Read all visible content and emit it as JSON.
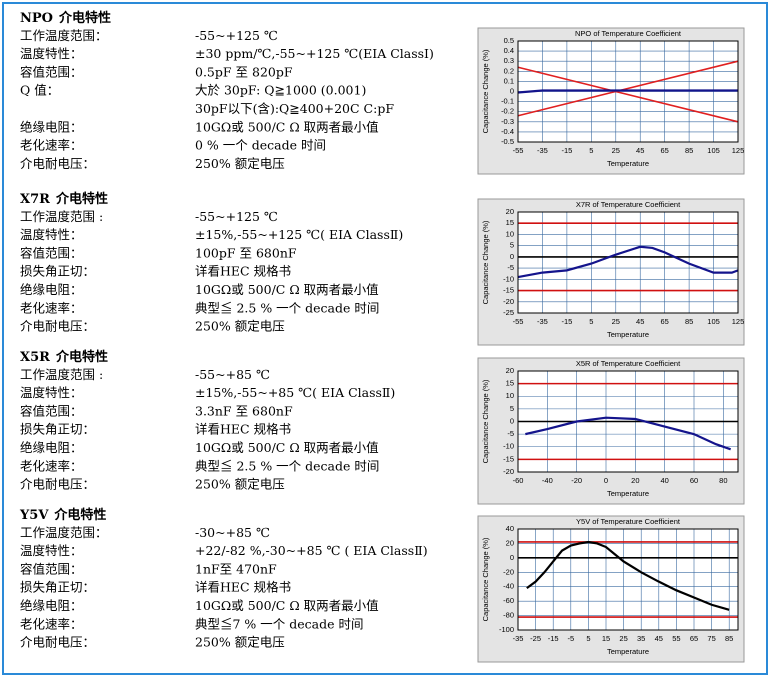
{
  "sections": [
    {
      "heading": {
        "code": "NPO",
        "text": "介电特性"
      },
      "items": [
        {
          "label": "工作温度范围：",
          "values": [
            "-55~+125 ℃"
          ]
        },
        {
          "label": "温度特性：",
          "values": [
            "±30 ppm/℃,-55~+125 ℃(EIA ClassⅠ)"
          ]
        },
        {
          "label": "容值范围：",
          "values": [
            "0.5pF 至 820pF"
          ]
        },
        {
          "label": "Q 值：",
          "values": [
            "大於 30pF: Q≧1000  (0.001)",
            "30pF以下(含):Q≧400+20C C:pF"
          ]
        },
        {
          "label": "绝缘电阻：",
          "values": [
            "10GΩ或 500/C Ω 取两者最小值"
          ]
        },
        {
          "label": "老化速率：",
          "values": [
            "0 % 一个 decade 时间"
          ]
        },
        {
          "label": "介电耐电压：",
          "values": [
            "250% 额定电压"
          ]
        }
      ]
    },
    {
      "heading": {
        "code": "X7R",
        "text": "介电特性"
      },
      "items": [
        {
          "label": "工作温度范围 :",
          "values": [
            "-55~+125 ℃"
          ]
        },
        {
          "label": "温度特性：",
          "values": [
            "±15%,-55~+125 ℃( EIA ClassⅡ)"
          ]
        },
        {
          "label": "容值范围：",
          "values": [
            "100pF 至 680nF"
          ]
        },
        {
          "label": "损失角正切：",
          "values": [
            "详看HEC 规格书"
          ]
        },
        {
          "label": "绝缘电阻：",
          "values": [
            "10GΩ或 500/C Ω 取两者最小值"
          ]
        },
        {
          "label": "老化速率：",
          "values": [
            "典型≦ 2.5 % 一个 decade 时间"
          ]
        },
        {
          "label": "介电耐电压：",
          "values": [
            "250% 额定电压"
          ]
        }
      ]
    },
    {
      "heading": {
        "code": "X5R",
        "text": "介电特性"
      },
      "items": [
        {
          "label": "工作温度范围 :",
          "values": [
            "-55~+85 ℃"
          ]
        },
        {
          "label": "温度特性：",
          "values": [
            "±15%,-55~+85 ℃( EIA ClassⅡ)"
          ]
        },
        {
          "label": "容值范围：",
          "values": [
            "3.3nF 至 680nF"
          ]
        },
        {
          "label": "损失角正切：",
          "values": [
            "详看HEC 规格书"
          ]
        },
        {
          "label": "绝缘电阻：",
          "values": [
            "10GΩ或 500/C Ω 取两者最小值"
          ]
        },
        {
          "label": "老化速率：",
          "values": [
            "典型≦ 2.5 % 一个 decade 时间"
          ]
        },
        {
          "label": "介电耐电压：",
          "values": [
            "250% 额定电压"
          ]
        }
      ]
    },
    {
      "heading": {
        "code": "Y5V",
        "text": "介电特性"
      },
      "items": [
        {
          "label": "工作温度范围：",
          "values": [
            "-30~+85 ℃"
          ]
        },
        {
          "label": "温度特性：",
          "values": [
            "+22/-82 %,-30~+85 ℃ ( EIA ClassⅡ)"
          ]
        },
        {
          "label": "容值范围：",
          "values": [
            "1nF至 470nF"
          ]
        },
        {
          "label": "损失角正切：",
          "values": [
            "详看HEC 规格书"
          ]
        },
        {
          "label": "绝缘电阻：",
          "values": [
            "10GΩ或 500/C Ω 取两者最小值"
          ]
        },
        {
          "label": "老化速率：",
          "values": [
            "典型≦7 % 一个 decade 时间"
          ]
        },
        {
          "label": "介电耐电压：",
          "values": [
            "250% 额定电压"
          ]
        }
      ]
    }
  ],
  "chart_data": [
    {
      "type": "line",
      "title": "NPO of Temperature Coefficient",
      "xlabel": "Temperature",
      "ylabel": "Capacitance Change (%)",
      "xlim": [
        -55,
        125
      ],
      "xticks": [
        -55,
        -35,
        -15,
        5,
        25,
        45,
        65,
        85,
        105,
        125
      ],
      "ylim": [
        -0.5,
        0.5
      ],
      "yticks": [
        0.5,
        0.4,
        0.3,
        0.2,
        0.1,
        0,
        -0.1,
        -0.2,
        -0.3,
        -0.4,
        -0.5
      ],
      "grid": true,
      "series": [
        {
          "color": "#e02020",
          "x": [
            -55,
            125
          ],
          "values": [
            0.24,
            -0.3
          ]
        },
        {
          "color": "#e02020",
          "x": [
            -55,
            125
          ],
          "values": [
            -0.24,
            0.3
          ]
        },
        {
          "color": "#14148c",
          "x": [
            -55,
            -35,
            -15,
            5,
            25,
            45,
            65,
            85,
            105,
            125
          ],
          "values": [
            -0.01,
            0.01,
            0.01,
            0.01,
            0.01,
            0.01,
            0.01,
            0.01,
            0.01,
            0.01
          ]
        }
      ]
    },
    {
      "type": "line",
      "title": "X7R of Temperature Coefficient",
      "xlabel": "Temperature",
      "ylabel": "Capacitance Change (%)",
      "xlim": [
        -55,
        125
      ],
      "xticks": [
        -55,
        -35,
        -15,
        5,
        25,
        45,
        65,
        85,
        105,
        125
      ],
      "ylim": [
        -25,
        20
      ],
      "yticks": [
        20,
        15,
        10,
        5,
        0,
        -5,
        -10,
        -15,
        -20,
        -25
      ],
      "grid": true,
      "series": [
        {
          "color": "#d01010",
          "x": [
            -55,
            125
          ],
          "values": [
            15,
            15
          ]
        },
        {
          "color": "#d01010",
          "x": [
            -55,
            125
          ],
          "values": [
            -15,
            -15
          ]
        },
        {
          "color": "#000000",
          "x": [
            -55,
            125
          ],
          "values": [
            0,
            0
          ]
        },
        {
          "color": "#14148c",
          "x": [
            -55,
            -45,
            -35,
            -15,
            5,
            25,
            45,
            55,
            65,
            85,
            105,
            120,
            125
          ],
          "values": [
            -9,
            -8,
            -7,
            -6,
            -3,
            1,
            4.5,
            4,
            2,
            -3,
            -7,
            -7,
            -6
          ]
        }
      ]
    },
    {
      "type": "line",
      "title": "X5R of Temperature Coefficient",
      "xlabel": "Temperature",
      "ylabel": "Capacitance Change (%)",
      "xlim": [
        -60,
        90
      ],
      "xticks": [
        -60,
        -40,
        -20,
        0,
        20,
        40,
        60,
        80
      ],
      "ylim": [
        -20,
        20
      ],
      "yticks": [
        20,
        15,
        10,
        5,
        0,
        -5,
        -10,
        -15,
        -20
      ],
      "grid": true,
      "series": [
        {
          "color": "#d01010",
          "x": [
            -60,
            90
          ],
          "values": [
            15,
            15
          ]
        },
        {
          "color": "#d01010",
          "x": [
            -60,
            90
          ],
          "values": [
            -15,
            -15
          ]
        },
        {
          "color": "#000000",
          "x": [
            -60,
            90
          ],
          "values": [
            0,
            0
          ]
        },
        {
          "color": "#14148c",
          "x": [
            -55,
            -40,
            -20,
            0,
            20,
            40,
            60,
            75,
            85
          ],
          "values": [
            -5,
            -3,
            0,
            1.5,
            1,
            -2,
            -5,
            -9,
            -11
          ]
        }
      ]
    },
    {
      "type": "line",
      "title": "Y5V of Temperature Coefficient",
      "xlabel": "Temperature",
      "ylabel": "Capacitance Change (%)",
      "xlim": [
        -35,
        90
      ],
      "xticks": [
        -35,
        -25,
        -15,
        -5,
        5,
        15,
        25,
        35,
        45,
        55,
        65,
        75,
        85
      ],
      "ylim": [
        -100,
        40
      ],
      "yticks": [
        40,
        20,
        0,
        -20,
        -40,
        -60,
        -80,
        -100
      ],
      "grid": true,
      "series": [
        {
          "color": "#d01010",
          "x": [
            -35,
            90
          ],
          "values": [
            22,
            22
          ]
        },
        {
          "color": "#d01010",
          "x": [
            -35,
            90
          ],
          "values": [
            -82,
            -82
          ]
        },
        {
          "color": "#000000",
          "x": [
            -35,
            90
          ],
          "values": [
            0,
            0
          ]
        },
        {
          "color": "#000000",
          "x": [
            -30,
            -25,
            -20,
            -15,
            -10,
            -5,
            0,
            5,
            10,
            15,
            20,
            25,
            35,
            45,
            55,
            65,
            75,
            85
          ],
          "values": [
            -42,
            -33,
            -20,
            -5,
            10,
            17,
            20,
            22,
            20,
            15,
            5,
            -5,
            -20,
            -33,
            -45,
            -55,
            -65,
            -72
          ]
        }
      ]
    }
  ]
}
